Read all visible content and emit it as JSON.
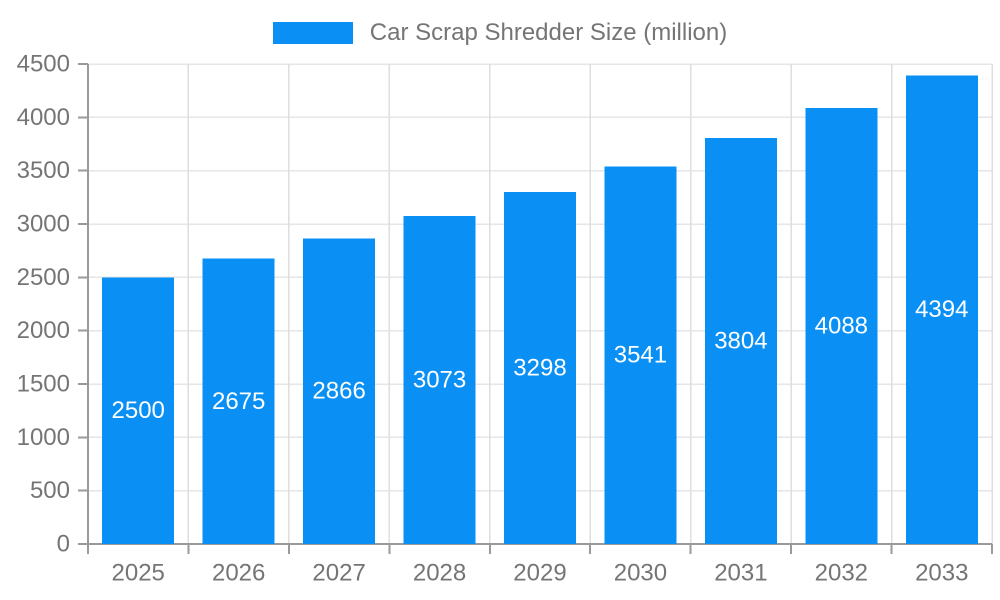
{
  "legend": {
    "label": "Car Scrap Shredder Size (million)"
  },
  "chart_data": {
    "type": "bar",
    "title": "Car Scrap Shredder Size (million)",
    "categories": [
      "2025",
      "2026",
      "2027",
      "2028",
      "2029",
      "2030",
      "2031",
      "2032",
      "2033"
    ],
    "values": [
      2500,
      2675,
      2866,
      3073,
      3298,
      3541,
      3804,
      4088,
      4394
    ],
    "xlabel": "",
    "ylabel": "",
    "ylim": [
      0,
      4500
    ],
    "ytick_step": 500,
    "grid": true,
    "legend_position": "top-center",
    "bar_color": "#0a90f5",
    "value_label_color": "#ffffff",
    "axis_text_color": "#757575",
    "grid_color": "#e6e6e6",
    "vertical_grid_color": "#dedede",
    "axis_line_color": "#9a9a9a"
  }
}
